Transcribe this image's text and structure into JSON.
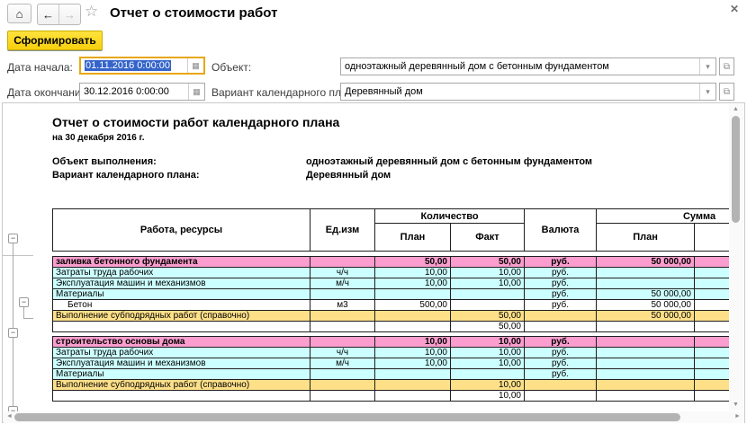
{
  "window": {
    "title": "Отчет о стоимости работ"
  },
  "icons": {
    "home": "⌂",
    "back": "←",
    "forward": "→",
    "star": "☆",
    "close": "✕",
    "calendar": "▦",
    "dropdown": "▾",
    "open": "⧉",
    "collapse": "−",
    "scroll_up": "▲",
    "scroll_down": "▼",
    "scroll_left": "◄",
    "scroll_right": "►"
  },
  "toolbar": {
    "generate_label": "Сформировать"
  },
  "filters": {
    "date_start": {
      "label": "Дата начала:",
      "value": "01.11.2016 0:00:00"
    },
    "date_end": {
      "label": "Дата окончания:",
      "value": "30.12.2016 0:00:00"
    },
    "object": {
      "label": "Объект:",
      "value": "одноэтажный деревянный дом с бетонным фундаментом"
    },
    "plan_variant": {
      "label": "Вариант календарного плана:",
      "value": "Деревянный дом"
    }
  },
  "report": {
    "title": "Отчет о стоимости работ календарного плана",
    "subtitle": "на 30 декабря 2016 г.",
    "info_rows": [
      {
        "label": "Объект выполнения:",
        "value": "одноэтажный деревянный дом с бетонным фундаментом"
      },
      {
        "label": "Вариант календарного плана:",
        "value": "Деревянный дом"
      }
    ],
    "table": {
      "headers": {
        "work": "Работа, ресурсы",
        "unit": "Ед.изм",
        "quantity": "Количество",
        "plan": "План",
        "fact": "Факт",
        "currency": "Валюта",
        "sum": "Сумма"
      },
      "groups": [
        {
          "rows": [
            {
              "type": "group",
              "name": "заливка бетонного фундамента",
              "unit": "",
              "qty_plan": "50,00",
              "qty_fact": "50,00",
              "currency": "руб.",
              "sum_plan": "50 000,00",
              "sum_fact": ""
            },
            {
              "type": "resource",
              "name": "Затраты труда рабочих",
              "unit": "ч/ч",
              "qty_plan": "10,00",
              "qty_fact": "10,00",
              "currency": "руб.",
              "sum_plan": "",
              "sum_fact": ""
            },
            {
              "type": "resource",
              "name": "Эксплуатация машин и механизмов",
              "unit": "м/ч",
              "qty_plan": "10,00",
              "qty_fact": "10,00",
              "currency": "руб.",
              "sum_plan": "",
              "sum_fact": ""
            },
            {
              "type": "resource",
              "name": "Материалы",
              "unit": "",
              "qty_plan": "",
              "qty_fact": "",
              "currency": "руб.",
              "sum_plan": "50 000,00",
              "sum_fact": ""
            },
            {
              "type": "material",
              "name": "Бетон",
              "unit": "м3",
              "qty_plan": "500,00",
              "qty_fact": "",
              "currency": "руб.",
              "sum_plan": "50 000,00",
              "sum_fact": ""
            },
            {
              "type": "note",
              "name": "Выполнение субподрядных работ (справочно)",
              "unit": "",
              "qty_plan": "",
              "qty_fact": "50,00",
              "currency": "",
              "sum_plan": "50 000,00",
              "sum_fact": ""
            },
            {
              "type": "plain",
              "name": "",
              "unit": "",
              "qty_plan": "",
              "qty_fact": "50,00",
              "currency": "",
              "sum_plan": "",
              "sum_fact": ""
            }
          ]
        },
        {
          "rows": [
            {
              "type": "group",
              "name": "строительство основы дома",
              "unit": "",
              "qty_plan": "10,00",
              "qty_fact": "10,00",
              "currency": "руб.",
              "sum_plan": "",
              "sum_fact": ""
            },
            {
              "type": "resource",
              "name": "Затраты труда рабочих",
              "unit": "ч/ч",
              "qty_plan": "10,00",
              "qty_fact": "10,00",
              "currency": "руб.",
              "sum_plan": "",
              "sum_fact": ""
            },
            {
              "type": "resource",
              "name": "Эксплуатация машин и механизмов",
              "unit": "м/ч",
              "qty_plan": "10,00",
              "qty_fact": "10,00",
              "currency": "руб.",
              "sum_plan": "",
              "sum_fact": ""
            },
            {
              "type": "resource",
              "name": "Материалы",
              "unit": "",
              "qty_plan": "",
              "qty_fact": "",
              "currency": "руб.",
              "sum_plan": "",
              "sum_fact": ""
            },
            {
              "type": "note",
              "name": "Выполнение субподрядных работ (справочно)",
              "unit": "",
              "qty_plan": "",
              "qty_fact": "10,00",
              "currency": "",
              "sum_plan": "",
              "sum_fact": ""
            },
            {
              "type": "plain",
              "name": "",
              "unit": "",
              "qty_plan": "",
              "qty_fact": "10,00",
              "currency": "",
              "sum_plan": "",
              "sum_fact": ""
            }
          ]
        }
      ]
    }
  },
  "colors": {
    "group_row": "#fb9dce",
    "resource_row": "#ccffff",
    "note_row": "#fee089",
    "button_yellow": "#ffe23c",
    "focus_ring": "#e8a713",
    "selection_blue": "#3564c9"
  }
}
